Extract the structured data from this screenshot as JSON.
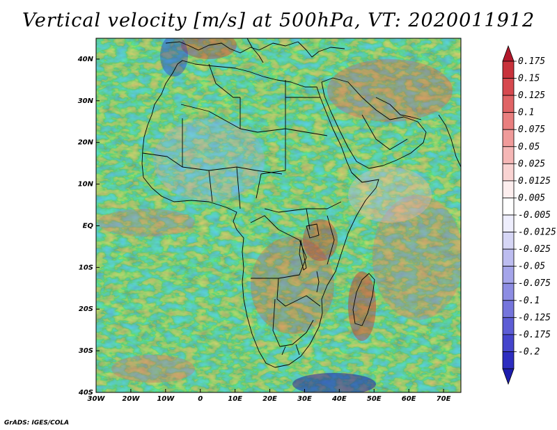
{
  "title": "Vertical velocity [m/s] at 500hPa, VT: 2020011912",
  "footer": "GrADS: IGES/COLA",
  "map": {
    "lon_range": [
      -30,
      75
    ],
    "lat_range": [
      -40,
      45
    ],
    "lat_ticks": [
      {
        "value": 40,
        "label": "40N"
      },
      {
        "value": 30,
        "label": "30N"
      },
      {
        "value": 20,
        "label": "20N"
      },
      {
        "value": 10,
        "label": "10N"
      },
      {
        "value": 0,
        "label": "EQ"
      },
      {
        "value": -10,
        "label": "10S"
      },
      {
        "value": -20,
        "label": "20S"
      },
      {
        "value": -30,
        "label": "30S"
      },
      {
        "value": -40,
        "label": "40S"
      }
    ],
    "lon_ticks": [
      {
        "value": -30,
        "label": "30W"
      },
      {
        "value": -20,
        "label": "20W"
      },
      {
        "value": -10,
        "label": "10W"
      },
      {
        "value": 0,
        "label": "0"
      },
      {
        "value": 10,
        "label": "10E"
      },
      {
        "value": 20,
        "label": "20E"
      },
      {
        "value": 30,
        "label": "30E"
      },
      {
        "value": 40,
        "label": "40E"
      },
      {
        "value": 50,
        "label": "50E"
      },
      {
        "value": 60,
        "label": "60E"
      },
      {
        "value": 70,
        "label": "70E"
      }
    ]
  },
  "colorbar": {
    "colors": [
      "#b2182b",
      "#c8323b",
      "#d6494f",
      "#e06466",
      "#e97f7f",
      "#f09b9a",
      "#f5b7b6",
      "#f9d3d2",
      "#fdeeee",
      "#ffffff",
      "#eeeefd",
      "#d6d6f5",
      "#bdbdf0",
      "#a5a5ea",
      "#8d8de3",
      "#7575dc",
      "#5d5dd5",
      "#4545cc",
      "#2d2dc0",
      "#1c1cad"
    ],
    "labels": [
      "0.175",
      "0.15",
      "0.125",
      "0.1",
      "0.075",
      "0.05",
      "0.025",
      "0.0125",
      "0.005",
      "-0.005",
      "-0.0125",
      "-0.025",
      "-0.05",
      "-0.075",
      "-0.1",
      "-0.125",
      "-0.175",
      "-0.2"
    ]
  }
}
